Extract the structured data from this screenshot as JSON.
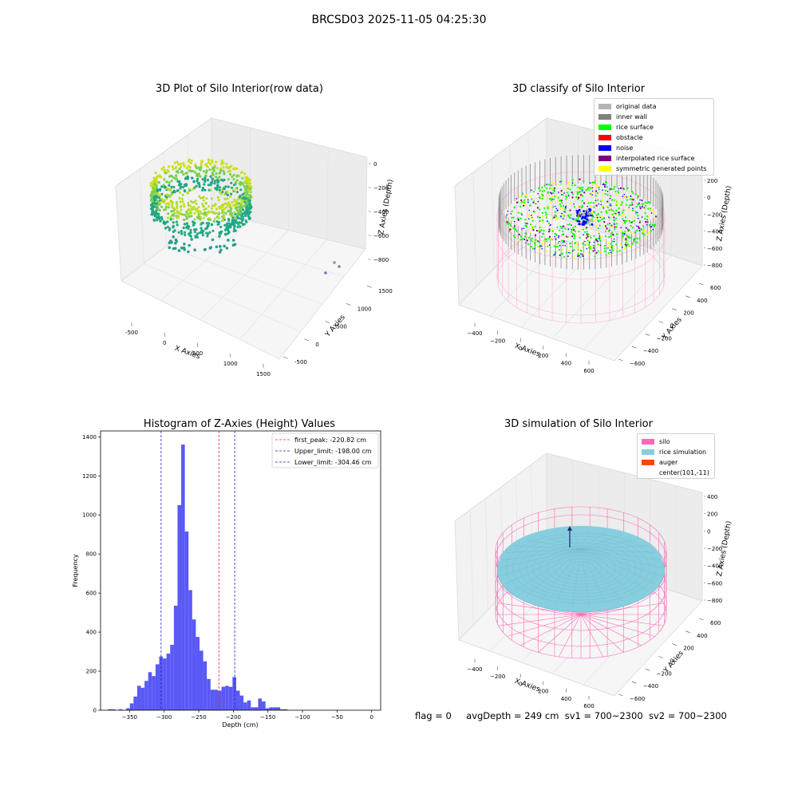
{
  "figure_title": "BRCSD03 2025-11-05 04:25:30",
  "footer": {
    "flag": "flag = 0",
    "avg_depth": "avgDepth = 249 cm",
    "sv1": "sv1 = 700~2300",
    "sv2": "sv2 = 700~2300"
  },
  "colors": {
    "hist_bar": "#5050f5",
    "peak_line": "#e03030",
    "limit_line": "#2020c0",
    "silo": "#ff69b4",
    "rice_sim": "#87cedf",
    "auger": "#ff4500",
    "wall_gray": "#808080"
  },
  "chart_data": [
    {
      "type": "scatter",
      "title": "3D Plot of Silo Interior(row data)",
      "xlabel": "X Axies",
      "ylabel": "Y Axies",
      "zlabel": "Z Axies (Depth)",
      "x_ticks": [
        "-500",
        "0",
        "500",
        "1000",
        "1500"
      ],
      "y_ticks": [
        "-500",
        "0",
        "500",
        "1000",
        "1500"
      ],
      "z_ticks": [
        "0",
        "−200",
        "−400",
        "−600",
        "−800"
      ]
    },
    {
      "type": "scatter",
      "title": "3D classify of Silo Interior",
      "xlabel": "X Axies",
      "ylabel": "Y Axies",
      "zlabel": "Z Axies (Depth)",
      "x_ticks": [
        "−400",
        "−200",
        "0",
        "200",
        "400",
        "600"
      ],
      "y_ticks": [
        "−600",
        "−400",
        "−200",
        "0",
        "200",
        "400",
        "600"
      ],
      "z_ticks": [
        "200",
        "0",
        "−200",
        "−400",
        "−600",
        "−800"
      ],
      "legend": [
        {
          "label": "original data",
          "color": "#b4b4b4"
        },
        {
          "label": "inner wall",
          "color": "#808080"
        },
        {
          "label": "rice surface",
          "color": "#00ff00"
        },
        {
          "label": "obstacle",
          "color": "#ff0000"
        },
        {
          "label": "noise",
          "color": "#0000ff"
        },
        {
          "label": "interpolated rice surface",
          "color": "#800080"
        },
        {
          "label": "symmetric generated points",
          "color": "#ffff00"
        }
      ]
    },
    {
      "type": "bar",
      "title": "Histogram of Z-Axies (Height) Values",
      "xlabel": "Depth (cm)",
      "ylabel": "Frequency",
      "xlim": [
        -392,
        13
      ],
      "ylim": [
        0,
        1430
      ],
      "x_ticks": [
        -350,
        -300,
        -250,
        -200,
        -150,
        -100,
        -50,
        0
      ],
      "x_tick_labels": [
        "−350",
        "−300",
        "−250",
        "−200",
        "−150",
        "−100",
        "−50",
        "0"
      ],
      "y_ticks": [
        0,
        200,
        400,
        600,
        800,
        1000,
        1200,
        1400
      ],
      "y_tick_labels": [
        "0",
        "200",
        "400",
        "600",
        "800",
        "1000",
        "1200",
        "1400"
      ],
      "bin_width": 5.3,
      "bin_start": -392,
      "values": [
        0,
        0,
        5,
        5,
        0,
        5,
        0,
        10,
        35,
        70,
        125,
        115,
        150,
        195,
        175,
        235,
        275,
        265,
        290,
        335,
        535,
        1050,
        1360,
        915,
        615,
        465,
        375,
        305,
        250,
        160,
        105,
        105,
        100,
        120,
        125,
        120,
        170,
        100,
        75,
        40,
        50,
        15,
        15,
        60,
        45,
        10,
        15,
        15,
        15,
        5,
        5,
        0
      ],
      "reference_lines": [
        {
          "label": "first_peak: -220.82 cm",
          "x": -220.82,
          "color": "#e03030"
        },
        {
          "label": "Upper_limit: -198.00 cm",
          "x": -198.0,
          "color": "#2020c0"
        },
        {
          "label": "Lower_limit: -304.46 cm",
          "x": -304.46,
          "color": "#2020c0"
        }
      ]
    },
    {
      "type": "scatter",
      "title": "3D simulation of Silo Interior",
      "xlabel": "X Axies",
      "ylabel": "Y Axies",
      "zlabel": "Z Axies (Depth)",
      "x_ticks": [
        "−400",
        "−200",
        "0",
        "200",
        "400",
        "600"
      ],
      "y_ticks": [
        "−600",
        "−400",
        "−200",
        "0",
        "200",
        "400",
        "600"
      ],
      "z_ticks": [
        "400",
        "200",
        "0",
        "−200",
        "−400",
        "−600",
        "−800"
      ],
      "legend": [
        {
          "label": "silo",
          "color": "#ff69b4"
        },
        {
          "label": "rice simulation",
          "color": "#87cedf"
        },
        {
          "label": "auger",
          "color": "#ff4500"
        },
        {
          "label": "center(101,-11)",
          "color": ""
        }
      ]
    }
  ]
}
